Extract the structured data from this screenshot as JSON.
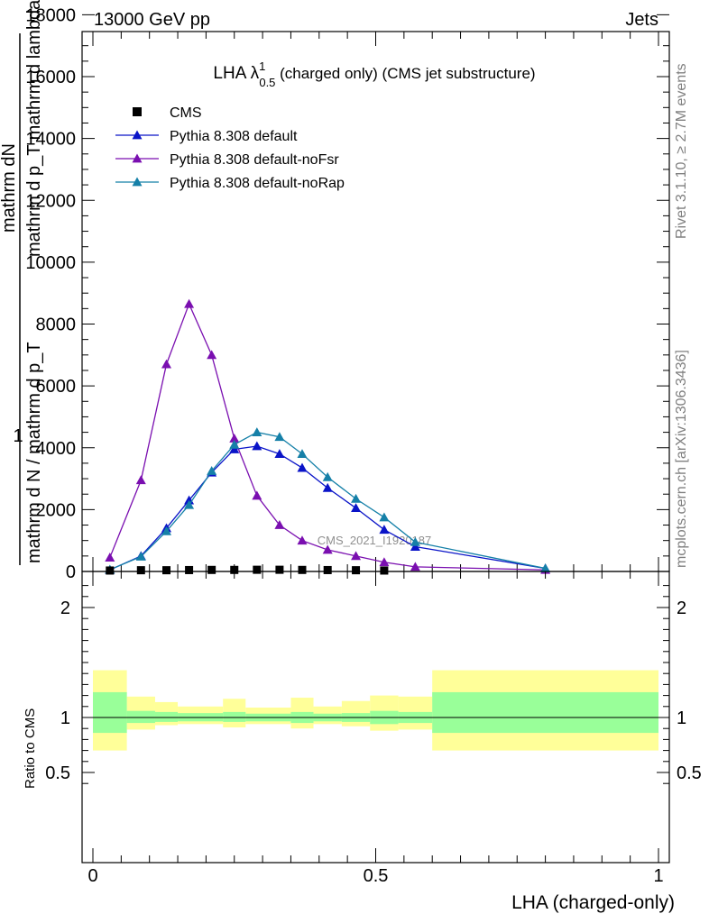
{
  "header": {
    "left": "13000 GeV pp",
    "right": "Jets"
  },
  "side_labels": {
    "rivet": "Rivet 3.1.10, ≥ 2.7M events",
    "mcplots": "mcplots.cern.ch [arXiv:1306.3436]"
  },
  "chart_data": [
    {
      "type": "line",
      "title_main": "LHA λ",
      "title_sup": "1",
      "title_sub": "0.5",
      "title_rest": " (charged only) (CMS jet substructure)",
      "watermark": "CMS_2021_I1920187",
      "ylabel_top": "1",
      "ylabel_num": "mathrm dN",
      "ylabel_den": "mathrm d p_T mathrm d lambda",
      "ylabel_frac": "mathrm d N / mathrm d p_T",
      "ylabel_full": "mathrm d N / mathrm d p_T",
      "ylabel_sub": "T",
      "xlim": [
        0,
        1
      ],
      "ylim": [
        0,
        18000
      ],
      "yticks": [
        {
          "v": 0,
          "label": "0"
        },
        {
          "v": 2000,
          "label": "2000"
        },
        {
          "v": 4000,
          "label": "4000"
        },
        {
          "v": 6000,
          "label": "6000"
        },
        {
          "v": 8000,
          "label": "8000"
        },
        {
          "v": 10000,
          "label": "10000"
        },
        {
          "v": 12000,
          "label": "12000"
        },
        {
          "v": 14000,
          "label": "14000"
        },
        {
          "v": 16000,
          "label": "16000"
        },
        {
          "v": 18000,
          "label": "18000"
        }
      ],
      "legend": [
        {
          "name": "CMS",
          "marker": "square",
          "color": "#000000"
        },
        {
          "name": "Pythia 8.308 default",
          "marker": "triangle",
          "color": "#0a14c8"
        },
        {
          "name": "Pythia 8.308 default-noFsr",
          "marker": "triangle",
          "color": "#7a0fb0"
        },
        {
          "name": "Pythia 8.308 default-noRap",
          "marker": "triangle",
          "color": "#1580a8"
        }
      ],
      "cms": {
        "x": [
          0.03,
          0.085,
          0.13,
          0.17,
          0.21,
          0.25,
          0.29,
          0.33,
          0.37,
          0.415,
          0.465,
          0.515
        ],
        "y": [
          30,
          40,
          40,
          45,
          50,
          50,
          55,
          55,
          50,
          45,
          40,
          30
        ]
      },
      "series": [
        {
          "name": "Pythia 8.308 default",
          "color": "#0a14c8",
          "x": [
            0.03,
            0.085,
            0.13,
            0.17,
            0.21,
            0.25,
            0.29,
            0.33,
            0.37,
            0.415,
            0.465,
            0.515,
            0.57,
            0.8
          ],
          "y": [
            50,
            500,
            1400,
            2300,
            3200,
            3950,
            4050,
            3800,
            3350,
            2700,
            2050,
            1350,
            800,
            100
          ]
        },
        {
          "name": "Pythia 8.308 default-noFsr",
          "color": "#7a0fb0",
          "x": [
            0.03,
            0.085,
            0.13,
            0.17,
            0.21,
            0.25,
            0.29,
            0.33,
            0.37,
            0.415,
            0.465,
            0.515,
            0.57,
            0.8
          ],
          "y": [
            450,
            2950,
            6700,
            8650,
            7000,
            4300,
            2450,
            1500,
            1000,
            700,
            500,
            300,
            150,
            50
          ]
        },
        {
          "name": "Pythia 8.308 default-noRap",
          "color": "#1580a8",
          "x": [
            0.03,
            0.085,
            0.13,
            0.17,
            0.21,
            0.25,
            0.29,
            0.33,
            0.37,
            0.415,
            0.465,
            0.515,
            0.57,
            0.8
          ],
          "y": [
            60,
            480,
            1300,
            2150,
            3250,
            4100,
            4500,
            4350,
            3800,
            3050,
            2350,
            1750,
            950,
            100
          ]
        }
      ]
    },
    {
      "type": "area",
      "ylabel": "Ratio to CMS",
      "xlabel": "LHA (charged-only)",
      "xlim": [
        0,
        1
      ],
      "ylim": [
        0.35,
        2.3
      ],
      "yticks": [
        {
          "v": 0.5,
          "label": "0.5"
        },
        {
          "v": 1,
          "label": "1"
        },
        {
          "v": 2,
          "label": "2"
        }
      ],
      "xticks": [
        {
          "v": 0,
          "label": "0"
        },
        {
          "v": 0.5,
          "label": "0.5"
        },
        {
          "v": 1,
          "label": "1"
        }
      ],
      "bands": [
        {
          "x0": 0.0,
          "x1": 0.06,
          "green": [
            0.86,
            1.23
          ],
          "yellow": [
            0.7,
            1.43
          ]
        },
        {
          "x0": 0.06,
          "x1": 0.11,
          "green": [
            0.95,
            1.06
          ],
          "yellow": [
            0.89,
            1.19
          ]
        },
        {
          "x0": 0.11,
          "x1": 0.15,
          "green": [
            0.96,
            1.05
          ],
          "yellow": [
            0.93,
            1.14
          ]
        },
        {
          "x0": 0.15,
          "x1": 0.23,
          "green": [
            0.965,
            1.04
          ],
          "yellow": [
            0.94,
            1.1
          ]
        },
        {
          "x0": 0.23,
          "x1": 0.27,
          "green": [
            0.96,
            1.05
          ],
          "yellow": [
            0.91,
            1.17
          ]
        },
        {
          "x0": 0.27,
          "x1": 0.35,
          "green": [
            0.965,
            1.035
          ],
          "yellow": [
            0.94,
            1.09
          ]
        },
        {
          "x0": 0.35,
          "x1": 0.39,
          "green": [
            0.95,
            1.05
          ],
          "yellow": [
            0.9,
            1.18
          ]
        },
        {
          "x0": 0.39,
          "x1": 0.44,
          "green": [
            0.965,
            1.035
          ],
          "yellow": [
            0.94,
            1.1
          ]
        },
        {
          "x0": 0.44,
          "x1": 0.49,
          "green": [
            0.96,
            1.04
          ],
          "yellow": [
            0.92,
            1.15
          ]
        },
        {
          "x0": 0.49,
          "x1": 0.54,
          "green": [
            0.94,
            1.06
          ],
          "yellow": [
            0.88,
            1.2
          ]
        },
        {
          "x0": 0.54,
          "x1": 0.6,
          "green": [
            0.95,
            1.05
          ],
          "yellow": [
            0.89,
            1.19
          ]
        },
        {
          "x0": 0.6,
          "x1": 1.0,
          "green": [
            0.86,
            1.23
          ],
          "yellow": [
            0.7,
            1.43
          ]
        }
      ],
      "reference": 1
    }
  ]
}
